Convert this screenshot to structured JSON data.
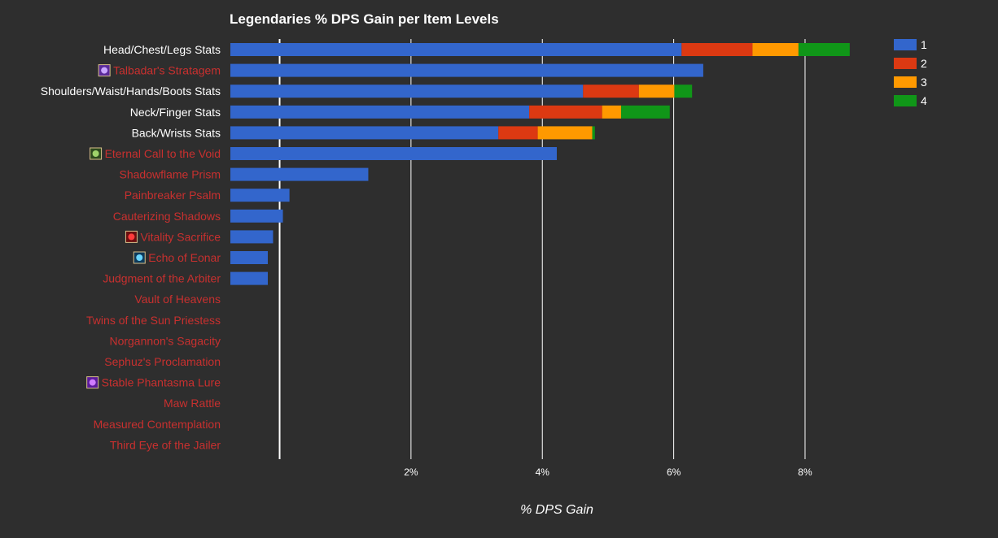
{
  "chart_data": {
    "type": "bar",
    "orientation": "horizontal",
    "stacked": true,
    "title": "Legendaries % DPS Gain per Item Levels",
    "xlabel": "% DPS Gain",
    "ylabel": "",
    "xlim": [
      -0.75,
      9.5
    ],
    "xticks": [
      2,
      4,
      6,
      8
    ],
    "xtick_labels": [
      "2%",
      "4%",
      "6%",
      "8%"
    ],
    "grid": true,
    "legend_position": "top-right",
    "categories": [
      "Head/Chest/Legs Stats",
      "Talbadar's Stratagem",
      "Shoulders/Waist/Hands/Boots Stats",
      "Neck/Finger Stats",
      "Back/Wrists Stats",
      "Eternal Call to the Void",
      "Shadowflame Prism",
      "Painbreaker Psalm",
      "Cauterizing Shadows",
      "Vitality Sacrifice",
      "Echo of Eonar",
      "Judgment of the Arbiter",
      "Vault of Heavens",
      "Twins of the Sun Priestess",
      "Norgannon's Sagacity",
      "Sephuz's Proclamation",
      "Stable Phantasma Lure",
      "Maw Rattle",
      "Measured Contemplation",
      "Third Eye of the Jailer"
    ],
    "category_styles": [
      "stat",
      "legendary",
      "stat",
      "stat",
      "stat",
      "legendary",
      "legendary",
      "legendary",
      "legendary",
      "legendary",
      "legendary",
      "legendary",
      "legendary",
      "legendary",
      "legendary",
      "legendary",
      "legendary",
      "legendary",
      "legendary",
      "legendary"
    ],
    "category_icons": [
      "",
      "talbadar-icon",
      "",
      "",
      "",
      "eternal-call-icon",
      "",
      "",
      "",
      "vitality-sacrifice-icon",
      "echo-of-eonar-icon",
      "",
      "",
      "",
      "",
      "",
      "stable-phantasma-icon",
      "",
      "",
      ""
    ],
    "series": [
      {
        "name": "1",
        "color": "#3366cc",
        "values": [
          6.87,
          7.2,
          5.37,
          4.55,
          4.08,
          4.97,
          2.1,
          0.9,
          0.8,
          0.65,
          0.57,
          0.57,
          0,
          0,
          0,
          0,
          0,
          0,
          0,
          0
        ]
      },
      {
        "name": "2",
        "color": "#dc3912",
        "values": [
          1.08,
          0,
          0.85,
          1.11,
          0.6,
          0,
          0,
          0,
          0,
          0,
          0,
          0,
          0,
          0,
          0,
          0,
          0,
          0,
          0,
          0
        ]
      },
      {
        "name": "3",
        "color": "#ff9900",
        "values": [
          0.7,
          0,
          0.54,
          0.29,
          0.83,
          0,
          0,
          0,
          0,
          0,
          0,
          0,
          0,
          0,
          0,
          0,
          0,
          0,
          0,
          0
        ]
      },
      {
        "name": "4",
        "color": "#109618",
        "values": [
          0.78,
          0,
          0.27,
          0.74,
          0.04,
          0,
          0,
          0,
          0,
          0,
          0,
          0,
          0,
          0,
          0,
          0,
          0,
          0,
          0,
          0
        ]
      }
    ]
  },
  "colors": {
    "background": "#2e2e2e",
    "stat_label": "#ffffff",
    "legendary_label": "#c8302f",
    "gridline": "#ffffff"
  }
}
